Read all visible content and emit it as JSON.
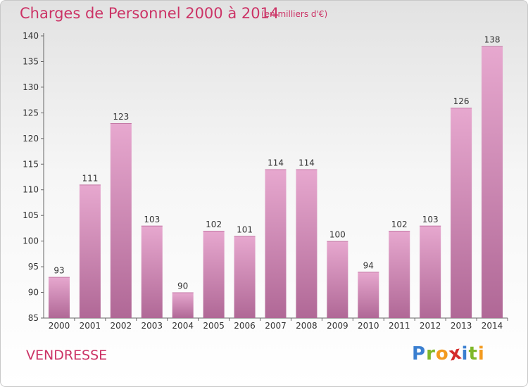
{
  "title": "Charges de Personnel 2000 à 2014",
  "subtitle": "(en milliers d'€)",
  "commune": "VENDRESSE",
  "logo": {
    "letters": [
      "P",
      "r",
      "o",
      "x",
      "i",
      "t",
      "i"
    ],
    "colors": [
      "#3a7fd0",
      "#7fb829",
      "#f39a1f",
      "#d42a2a",
      "#3a7fd0",
      "#7fb829",
      "#f39a1f"
    ]
  },
  "colors": {
    "title": "#cc3366",
    "bar_top": "#e7a8cf",
    "bar_bottom": "#b06896"
  },
  "chart_data": {
    "type": "bar",
    "title": "Charges de Personnel 2000 à 2014",
    "xlabel": "",
    "ylabel": "",
    "categories": [
      "2000",
      "2001",
      "2002",
      "2003",
      "2004",
      "2005",
      "2006",
      "2007",
      "2008",
      "2009",
      "2010",
      "2011",
      "2012",
      "2013",
      "2014"
    ],
    "values": [
      93,
      111,
      123,
      103,
      90,
      102,
      101,
      114,
      114,
      100,
      94,
      102,
      103,
      126,
      138
    ],
    "ylim": [
      85,
      140
    ],
    "yticks": [
      85,
      90,
      95,
      100,
      105,
      110,
      115,
      120,
      125,
      130,
      135,
      140
    ],
    "grid": false
  }
}
